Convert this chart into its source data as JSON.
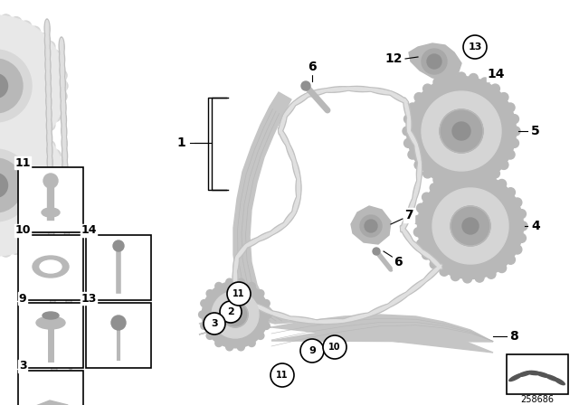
{
  "title": "",
  "background_color": "#ffffff",
  "diagram_number": "258686",
  "colors": {
    "light_gray": "#d8d8d8",
    "mid_gray": "#b8b8b8",
    "dark_gray": "#909090",
    "very_light": "#e8e8e8",
    "chain_dark": "#c0c0c0",
    "chain_light": "#e0e0e0",
    "black": "#000000",
    "white": "#ffffff",
    "sprocket_outer": "#c8c8c8",
    "sprocket_mid": "#d5d5d5",
    "sprocket_hub": "#a8a8a8",
    "guide_gray": "#c5c5c5"
  },
  "layout": {
    "figw": 6.4,
    "figh": 4.48,
    "dpi": 100
  }
}
